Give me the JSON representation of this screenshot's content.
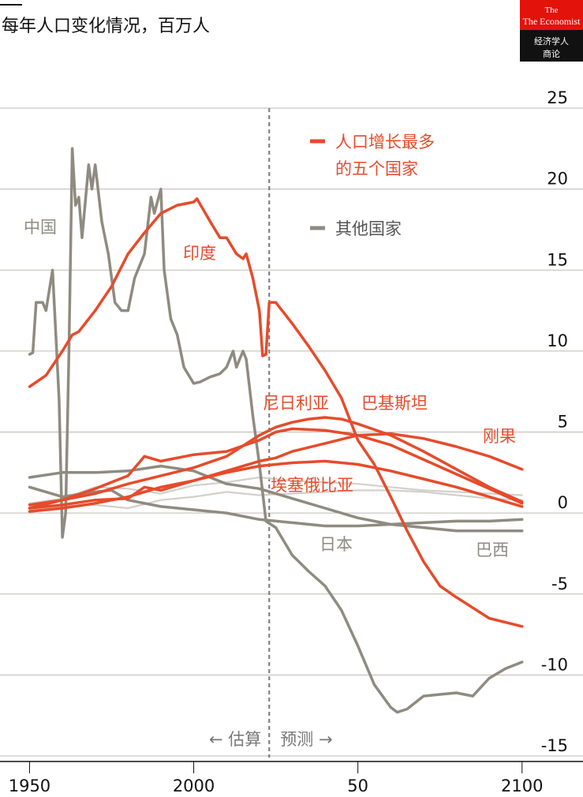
{
  "chart_data": {
    "type": "line",
    "title": "每年人口变化情况，百万人",
    "brand": {
      "name": "The Economist",
      "subtitle": "经济学人",
      "sub2": "商论"
    },
    "xlim": [
      1941,
      2114
    ],
    "xticks": [
      1950,
      2000,
      {
        "value": 2050,
        "label": "50"
      },
      2100
    ],
    "ylim": [
      -15,
      25
    ],
    "yticks": [
      -15,
      -10,
      -5,
      0,
      5,
      10,
      15,
      20,
      25
    ],
    "grid": true,
    "divider": 2023,
    "annotations": [
      "← 估算",
      "预测 →"
    ],
    "legend": [
      {
        "lines": [
          "人口增长最多",
          "的五个国家"
        ],
        "color": "#e64b2b"
      },
      {
        "lines": [
          "其他国家"
        ],
        "color": "#8f8b80"
      }
    ],
    "series": [
      {
        "color": "#d3d0ca",
        "x": [
          1950,
          1960,
          1970,
          1980,
          1990,
          2000,
          2010,
          2020,
          2030,
          2040,
          2050,
          2060,
          2070,
          2080,
          2090,
          2100
        ],
        "values": [
          0.6,
          0.9,
          1.6,
          1.5,
          1.2,
          1.7,
          1.9,
          2.2,
          2.0,
          1.9,
          1.8,
          1.6,
          1.4,
          1.3,
          1.2,
          1.1
        ]
      },
      {
        "color": "#d3d0ca",
        "x": [
          1950,
          1960,
          1970,
          1980,
          1990,
          2000,
          2010,
          2020,
          2030,
          2040,
          2050,
          2060,
          2070,
          2080,
          2090,
          2100
        ],
        "values": [
          0.2,
          0.4,
          0.5,
          0.3,
          0.8,
          1.0,
          1.3,
          1.1,
          1.2,
          1.3,
          1.4,
          1.4,
          1.3,
          1.1,
          0.9,
          0.8
        ]
      },
      {
        "name": "中国",
        "color": "#8f8b80",
        "x": [
          1950,
          1951,
          1952,
          1954,
          1955,
          1957,
          1958,
          1959,
          1960,
          1961,
          1962,
          1963,
          1964,
          1965,
          1966,
          1968,
          1969,
          1970,
          1972,
          1974,
          1976,
          1978,
          1980,
          1982,
          1985,
          1987,
          1988,
          1990,
          1991,
          1993,
          1995,
          1997,
          2000,
          2002,
          2005,
          2008,
          2010,
          2012,
          2013,
          2015,
          2016,
          2018,
          2020,
          2022,
          2025,
          2030,
          2035,
          2040,
          2045,
          2050,
          2055,
          2060,
          2062,
          2065,
          2070,
          2075,
          2080,
          2085,
          2090,
          2095,
          2100
        ],
        "values": [
          9.8,
          9.9,
          13,
          13,
          12.5,
          15,
          11,
          7,
          -1.5,
          0,
          10,
          22.5,
          19,
          19.5,
          17,
          21.5,
          20,
          21.5,
          18,
          16,
          13,
          12.5,
          12.5,
          14.5,
          16,
          19.5,
          18.5,
          20,
          15,
          12,
          11,
          9,
          8,
          8.1,
          8.4,
          8.6,
          9,
          10,
          9,
          10,
          9.5,
          6,
          3,
          -0.5,
          -0.9,
          -2.6,
          -3.6,
          -4.5,
          -6,
          -8.2,
          -10.6,
          -12,
          -12.3,
          -12.1,
          -11.3,
          -11.2,
          -11.1,
          -11.3,
          -10.2,
          -9.6,
          -9.2
        ]
      },
      {
        "name": "日本",
        "color": "#8f8b80",
        "x": [
          1950,
          1960,
          1970,
          1975,
          1980,
          1990,
          2000,
          2010,
          2020,
          2030,
          2040,
          2050,
          2060,
          2070,
          2080,
          2090,
          2100
        ],
        "values": [
          1.6,
          1.0,
          1.3,
          1.4,
          0.8,
          0.4,
          0.2,
          0,
          -0.4,
          -0.6,
          -0.8,
          -0.8,
          -0.7,
          -0.6,
          -0.5,
          -0.5,
          -0.4
        ]
      },
      {
        "name": "巴西",
        "color": "#8f8b80",
        "x": [
          1950,
          1960,
          1970,
          1980,
          1990,
          2000,
          2010,
          2020,
          2030,
          2040,
          2050,
          2060,
          2070,
          2080,
          2090,
          2100
        ],
        "values": [
          2.2,
          2.5,
          2.5,
          2.6,
          2.9,
          2.6,
          1.8,
          1.5,
          0.9,
          0.3,
          -0.3,
          -0.7,
          -0.9,
          -1.1,
          -1.1,
          -1.1
        ]
      },
      {
        "name": "埃塞俄比亚",
        "color": "#e64b2b",
        "x": [
          1950,
          1960,
          1970,
          1980,
          1985,
          1990,
          2000,
          2010,
          2020,
          2025,
          2030,
          2040,
          2050,
          2060,
          2070,
          2080,
          2090,
          2100
        ],
        "values": [
          0.3,
          0.5,
          0.8,
          0.9,
          1.6,
          1.4,
          2,
          2.5,
          2.9,
          3,
          3.1,
          3.2,
          3,
          2.6,
          2.1,
          1.6,
          1,
          0.4
        ]
      },
      {
        "name": "刚果",
        "color": "#e64b2b",
        "x": [
          1950,
          1960,
          1970,
          1980,
          1990,
          2000,
          2010,
          2020,
          2025,
          2030,
          2040,
          2050,
          2060,
          2070,
          2080,
          2090,
          2100
        ],
        "values": [
          0.1,
          0.3,
          0.6,
          1,
          1.6,
          2,
          2.6,
          3.2,
          3.4,
          3.8,
          4.3,
          4.8,
          4.9,
          4.6,
          4.1,
          3.5,
          2.7
        ]
      },
      {
        "name": "巴基斯坦",
        "color": "#e64b2b",
        "x": [
          1950,
          1960,
          1970,
          1980,
          1985,
          1990,
          2000,
          2010,
          2020,
          2025,
          2030,
          2040,
          2050,
          2060,
          2070,
          2080,
          2090,
          2100
        ],
        "values": [
          0.3,
          0.8,
          1.5,
          2.3,
          3.5,
          3.2,
          3.6,
          3.8,
          4.5,
          5,
          5.2,
          5.1,
          4.8,
          4.2,
          3.3,
          2.4,
          1.5,
          0.6
        ]
      },
      {
        "name": "尼日利亚",
        "color": "#e64b2b",
        "x": [
          1950,
          1960,
          1970,
          1980,
          1990,
          2000,
          2010,
          2020,
          2025,
          2030,
          2035,
          2040,
          2045,
          2050,
          2060,
          2070,
          2080,
          2090,
          2100
        ],
        "values": [
          0.5,
          0.8,
          1.2,
          1.8,
          2.3,
          2.8,
          3.5,
          4.8,
          5.3,
          5.6,
          5.8,
          5.9,
          5.8,
          5.5,
          4.8,
          3.8,
          2.7,
          1.6,
          0.7
        ]
      },
      {
        "name": "印度",
        "color": "#e64b2b",
        "x": [
          1950,
          1955,
          1960,
          1963,
          1965,
          1970,
          1975,
          1980,
          1985,
          1990,
          1995,
          2000,
          2001,
          2005,
          2008,
          2010,
          2013,
          2015,
          2016,
          2018,
          2020,
          2021,
          2022,
          2023,
          2025,
          2030,
          2035,
          2040,
          2045,
          2050,
          2055,
          2060,
          2065,
          2070,
          2075,
          2080,
          2090,
          2100
        ],
        "values": [
          7.8,
          8.5,
          10,
          11,
          11.2,
          12.5,
          14,
          16,
          17.3,
          18.5,
          19,
          19.2,
          19.4,
          18,
          17,
          17,
          16,
          15.7,
          16,
          14.5,
          12.5,
          9.7,
          9.8,
          13,
          13,
          11.7,
          10.3,
          8.8,
          7.1,
          4.5,
          3,
          1,
          -1.1,
          -3,
          -4.5,
          -5.2,
          -6.5,
          -7
        ]
      }
    ]
  }
}
